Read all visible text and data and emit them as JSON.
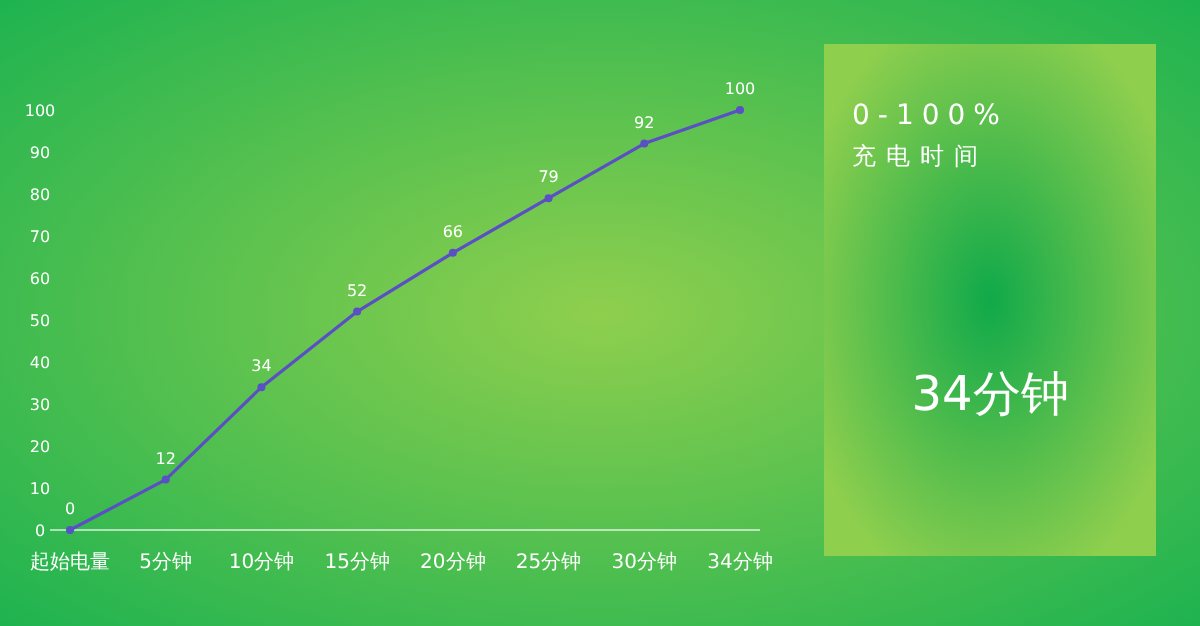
{
  "chart_data": [
    {
      "type": "line",
      "categories": [
        "起始电量",
        "5分钟",
        "10分钟",
        "15分钟",
        "20分钟",
        "25分钟",
        "30分钟",
        "34分钟"
      ],
      "series": [
        {
          "color": "#5a4fc4",
          "values": [
            0,
            12,
            34,
            52,
            66,
            79,
            92,
            100
          ]
        }
      ],
      "ylim": [
        0,
        100
      ],
      "yticks": [
        0,
        10,
        20,
        30,
        40,
        50,
        60,
        70,
        80,
        90,
        100
      ],
      "data_labels": true,
      "marker": "circle"
    },
    {
      "type": "other",
      "title": "0-100%",
      "subtitle": "充电时间",
      "annotations": [
        "34分钟"
      ]
    }
  ]
}
